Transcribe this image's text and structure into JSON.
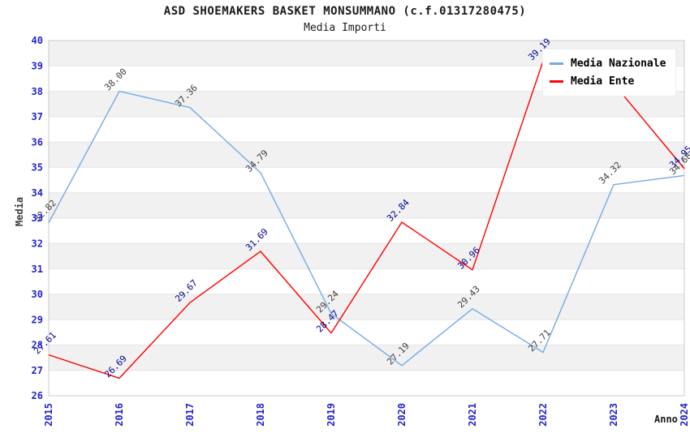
{
  "title": "ASD SHOEMAKERS BASKET MONSUMMANO (c.f.01317280475)",
  "subtitle": "Media Importi",
  "axes": {
    "x_label": "Anno",
    "y_label": "Media",
    "y_ticks": [
      26,
      27,
      28,
      29,
      30,
      31,
      32,
      33,
      34,
      35,
      36,
      37,
      38,
      39,
      40
    ],
    "x_ticks": [
      "2015",
      "2016",
      "2017",
      "2018",
      "2019",
      "2020",
      "2021",
      "2022",
      "2023",
      "2024"
    ]
  },
  "legend": {
    "items": [
      {
        "label": "Media Nazionale",
        "color": "#74abe2"
      },
      {
        "label": "Media Ente",
        "color": "#ff0000"
      }
    ]
  },
  "colors": {
    "tick_label": "#2424cc",
    "band_gray": "#f1f1f1",
    "grid_line": "#e4e4e4",
    "plot_border": "#cccccc",
    "nazionale_line": "#74abe2",
    "ente_line": "#ff0000",
    "nazionale_value_label": "#3d3d3d",
    "ente_value_label": "#00008b"
  },
  "chart_data": {
    "type": "line",
    "x": [
      2015,
      2016,
      2017,
      2018,
      2019,
      2020,
      2021,
      2022,
      2023,
      2024
    ],
    "series": [
      {
        "name": "Media Nazionale",
        "color": "#74abe2",
        "label_color": "#3d3d3d",
        "values": [
          32.82,
          38.0,
          37.36,
          34.79,
          29.24,
          27.19,
          29.43,
          27.71,
          34.32,
          34.68
        ],
        "point_labels": [
          "32.82",
          "38.00",
          "37.36",
          "34.79",
          "29.24",
          "27.19",
          "29.43",
          "27.71",
          "34.32",
          "34.68"
        ]
      },
      {
        "name": "Media Ente",
        "color": "#ff0000",
        "label_color": "#00008b",
        "values": [
          27.61,
          26.69,
          29.67,
          31.69,
          28.47,
          32.84,
          30.96,
          39.19,
          38.3,
          34.95
        ],
        "point_labels": [
          "27.61",
          "26.69",
          "29.67",
          "31.69",
          "28.47",
          "32.84",
          "30.96",
          "39.19",
          "",
          "34.95"
        ]
      }
    ],
    "title": "ASD SHOEMAKERS BASKET MONSUMMANO (c.f.01317280475)",
    "subtitle": "Media Importi",
    "xlabel": "Anno",
    "ylabel": "Media",
    "ylim": [
      26,
      40
    ],
    "x_tick_rotation": 90,
    "point_label_rotation": 45,
    "legend_position": "top-right",
    "banded_background": true
  }
}
